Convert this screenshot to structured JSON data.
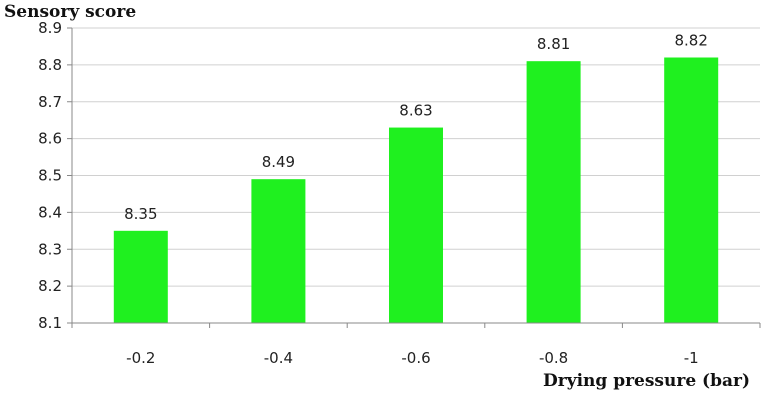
{
  "chart_data": {
    "type": "bar",
    "categories": [
      "-0.2",
      "-0.4",
      "-0.6",
      "-0.8",
      "-1"
    ],
    "values": [
      8.35,
      8.49,
      8.63,
      8.81,
      8.82
    ],
    "data_labels": [
      "8.35",
      "8.49",
      "8.63",
      "8.81",
      "8.82"
    ],
    "ylabel": "Sensory score",
    "xlabel": "Drying pressure (bar)",
    "ylim": [
      8.1,
      8.9
    ],
    "yticks": [
      8.1,
      8.2,
      8.3,
      8.4,
      8.5,
      8.6,
      8.7,
      8.8,
      8.9
    ],
    "ytick_labels": [
      "8.1",
      "8.2",
      "8.3",
      "8.4",
      "8.5",
      "8.6",
      "8.7",
      "8.8",
      "8.9"
    ],
    "grid": true,
    "bar_color": "#1ff01f"
  }
}
